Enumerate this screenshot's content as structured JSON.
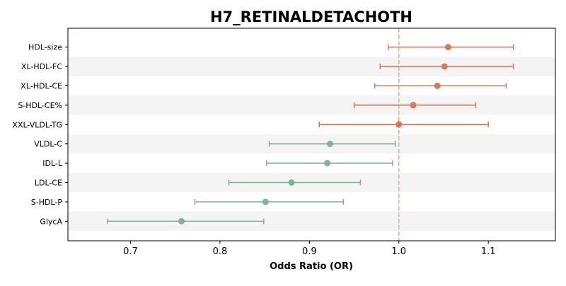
{
  "chart_data": {
    "type": "forest",
    "title": "H7_RETINALDETACHOTH",
    "xlabel": "Odds Ratio (OR)",
    "xlim": [
      0.63,
      1.175
    ],
    "xticks": [
      0.7,
      0.8,
      0.9,
      1.0,
      1.1
    ],
    "xtick_labels": [
      "0.7",
      "0.8",
      "0.9",
      "1.0",
      "1.1"
    ],
    "reference_line": 1.0,
    "alternating_row_shading": true,
    "rows": [
      {
        "label": "HDL-size",
        "or": 1.055,
        "lower": 0.988,
        "upper": 1.128,
        "direction": "positive"
      },
      {
        "label": "XL-HDL-FC",
        "or": 1.051,
        "lower": 0.979,
        "upper": 1.128,
        "direction": "positive"
      },
      {
        "label": "XL-HDL-CE",
        "or": 1.043,
        "lower": 0.973,
        "upper": 1.12,
        "direction": "positive"
      },
      {
        "label": "S-HDL-CE%",
        "or": 1.016,
        "lower": 0.95,
        "upper": 1.086,
        "direction": "positive"
      },
      {
        "label": "XXL-VLDL-TG",
        "or": 1.0,
        "lower": 0.911,
        "upper": 1.1,
        "direction": "positive"
      },
      {
        "label": "VLDL-C",
        "or": 0.923,
        "lower": 0.855,
        "upper": 0.996,
        "direction": "negative"
      },
      {
        "label": "IDL-L",
        "or": 0.92,
        "lower": 0.852,
        "upper": 0.993,
        "direction": "negative"
      },
      {
        "label": "LDL-CE",
        "or": 0.88,
        "lower": 0.81,
        "upper": 0.957,
        "direction": "negative"
      },
      {
        "label": "S-HDL-P",
        "or": 0.851,
        "lower": 0.772,
        "upper": 0.938,
        "direction": "negative"
      },
      {
        "label": "GlycA",
        "or": 0.757,
        "lower": 0.674,
        "upper": 0.849,
        "direction": "negative"
      }
    ],
    "colors": {
      "positive": "#d9785a",
      "negative": "#80b49a",
      "reference_line": "#f2b56b",
      "row_shade": "#f4f4f4"
    }
  }
}
